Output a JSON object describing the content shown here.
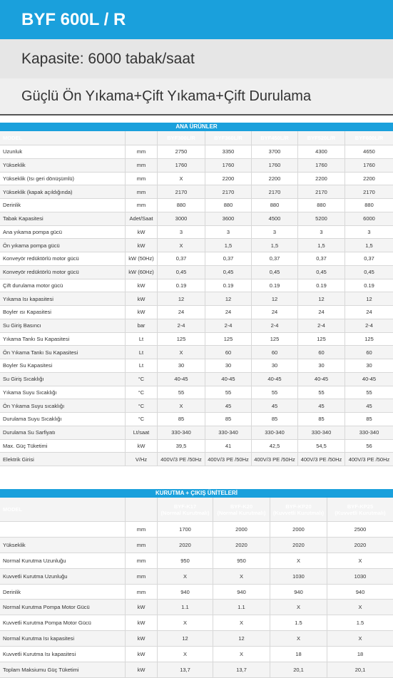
{
  "header": {
    "title": "BYF 600L / R",
    "capacity": "Kapasite: 6000 tabak/saat",
    "subtitle": "Güçlü Ön Yıkama+Çift Yıkama+Çift Durulama"
  },
  "table1": {
    "section": "ANA ÜRÜNLER",
    "header_label": "MODEL",
    "models": [
      "BYF300L/R",
      "BYF360L/R",
      "BYF450L/R",
      "BYF520L/R",
      "BYF600L/R"
    ],
    "rows": [
      [
        "Uzunluk",
        "mm",
        "2750",
        "3350",
        "3700",
        "4300",
        "4650"
      ],
      [
        "Yükseklik",
        "mm",
        "1760",
        "1760",
        "1760",
        "1760",
        "1760"
      ],
      [
        "Yükseklik (Isı geri dönüşümlü)",
        "mm",
        "X",
        "2200",
        "2200",
        "2200",
        "2200"
      ],
      [
        "Yükseklik (kapak açıldığında)",
        "mm",
        "2170",
        "2170",
        "2170",
        "2170",
        "2170"
      ],
      [
        "Derinlik",
        "mm",
        "880",
        "880",
        "880",
        "880",
        "880"
      ],
      [
        "Tabak Kapasitesi",
        "Adet/Saat",
        "3000",
        "3600",
        "4500",
        "5200",
        "6000"
      ],
      [
        "Ana yıkama pompa gücü",
        "kW",
        "3",
        "3",
        "3",
        "3",
        "3"
      ],
      [
        "Ön yıkama pompa gücü",
        "kW",
        "X",
        "1,5",
        "1,5",
        "1,5",
        "1,5"
      ],
      [
        "Konveyör redüktörlü motor gücü",
        "kW (50Hz)",
        "0,37",
        "0,37",
        "0,37",
        "0,37",
        "0,37"
      ],
      [
        "Konveyör redüktörlü motor gücü",
        "kW (60Hz)",
        "0,45",
        "0,45",
        "0,45",
        "0,45",
        "0,45"
      ],
      [
        "Çift durulama motor gücü",
        "kW",
        "0.19",
        "0.19",
        "0.19",
        "0.19",
        "0.19"
      ],
      [
        "Yıkama Isı kapasitesi",
        "kW",
        "12",
        "12",
        "12",
        "12",
        "12"
      ],
      [
        "Boyler ısı Kapasitesi",
        "kW",
        "24",
        "24",
        "24",
        "24",
        "24"
      ],
      [
        "Su Giriş Basıncı",
        "bar",
        "2-4",
        "2-4",
        "2-4",
        "2-4",
        "2-4"
      ],
      [
        "Yıkama Tankı Su Kapasitesi",
        "Lt",
        "125",
        "125",
        "125",
        "125",
        "125"
      ],
      [
        "Ön Yıkama Tankı Su Kapasitesi",
        "Lt",
        "X",
        "60",
        "60",
        "60",
        "60"
      ],
      [
        "Boyler Su Kapasitesi",
        "Lt",
        "30",
        "30",
        "30",
        "30",
        "30"
      ],
      [
        "Su Giriş Sıcaklığı",
        "°C",
        "40-45",
        "40-45",
        "40-45",
        "40-45",
        "40-45"
      ],
      [
        "Yıkama Suyu Sıcaklığı",
        "°C",
        "55",
        "55",
        "55",
        "55",
        "55"
      ],
      [
        "Ön Yıkama Suyu sıcaklığı",
        "°C",
        "X",
        "45",
        "45",
        "45",
        "45"
      ],
      [
        "Durulama Suyu Sıcaklığı",
        "°C",
        "85",
        "85",
        "85",
        "85",
        "85"
      ],
      [
        "Durulama Su Sarfiyatı",
        "Lt/saat",
        "330-340",
        "330-340",
        "330-340",
        "330-340",
        "330-340"
      ],
      [
        "Max. Güç Tüketimi",
        "kW",
        "39,5",
        "41",
        "42,5",
        "54,5",
        "56"
      ],
      [
        "Elektrik Girisi",
        "V/Hz",
        "400V/3 PE /50Hz",
        "400V/3 PE /50Hz",
        "400V/3 PE /50Hz",
        "400V/3 PE /50Hz",
        "400V/3 PE /50Hz"
      ]
    ]
  },
  "table2": {
    "section": "KURUTMA + ÇIKIŞ ÜNİTELERİ",
    "header_label": "MODEL",
    "models": [
      {
        "name": "BYF-K17",
        "sub": "(Normal Kurutmalı)"
      },
      {
        "name": "BYF-K20",
        "sub": "(Normal Kurutmalı)"
      },
      {
        "name": "BYF-KP20",
        "sub": "(Kuvvetli Kurutmalı)"
      },
      {
        "name": "BYF-KP25",
        "sub": "(Kuvvetli Kurutmalı)"
      }
    ],
    "rows": [
      [
        null,
        "mm",
        "1700",
        "2000",
        "2000",
        "2500"
      ],
      [
        "Yükseklik",
        "mm",
        "2020",
        "2020",
        "2020",
        "2020"
      ],
      [
        "Normal Kurutma Uzunluğu",
        "mm",
        "950",
        "950",
        "X",
        "X"
      ],
      [
        "Kuvvetli Kurutma Uzunluğu",
        "mm",
        "X",
        "X",
        "1030",
        "1030"
      ],
      [
        "Derinlik",
        "mm",
        "940",
        "940",
        "940",
        "940"
      ],
      [
        "Normal Kurutma Pompa Motor Gücü",
        "kW",
        "1.1",
        "1.1",
        "X",
        "X"
      ],
      [
        "Kuvvetli Kurutma Pompa Motor Gücü",
        "kW",
        "X",
        "X",
        "1.5",
        "1.5"
      ],
      [
        "Normal Kurutma Isı kapasitesi",
        "kW",
        "12",
        "12",
        "X",
        "X"
      ],
      [
        "Kuvvetli Kurutma Isı kapasitesi",
        "kW",
        "X",
        "X",
        "18",
        "18"
      ],
      [
        "Toplam Maksiumu Güç Tüketimi",
        "kW",
        "13,7",
        "13,7",
        "20,1",
        "20,1"
      ]
    ]
  }
}
